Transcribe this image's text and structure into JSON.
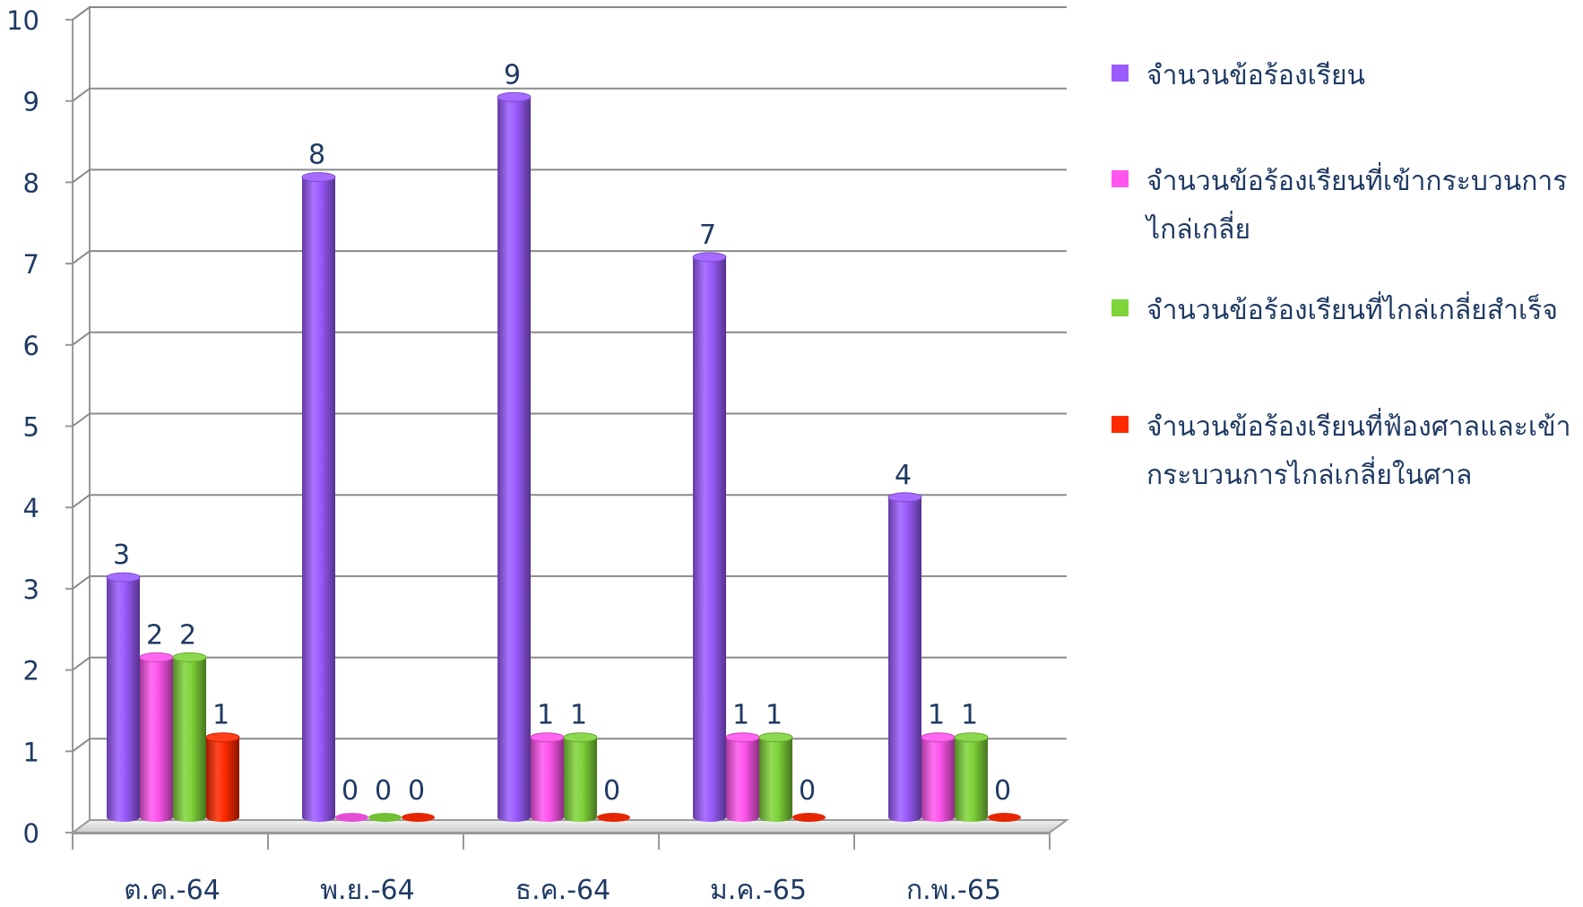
{
  "chart_data": {
    "type": "bar",
    "categories": [
      "ต.ค.-64",
      "พ.ย.-64",
      "ธ.ค.-64",
      "ม.ค.-65",
      "ก.พ.-65"
    ],
    "series": [
      {
        "name": "จำนวนข้อร้องเรียน",
        "values": [
          3,
          8,
          9,
          7,
          4
        ],
        "color": "#9b5cff"
      },
      {
        "name": "จำนวนข้อร้องเรียนที่เข้ากระบวนการไกล่เกลี่ย",
        "values": [
          2,
          0,
          1,
          1,
          1
        ],
        "color": "#ff55ee"
      },
      {
        "name": "จำนวนข้อร้องเรียนที่ไกล่เกลี่ยสำเร็จ",
        "values": [
          2,
          0,
          1,
          1,
          1
        ],
        "color": "#7fd43a"
      },
      {
        "name": "จำนวนข้อร้องเรียนที่ฟ้องศาลและเข้ากระบวนการไกล่เกลี่ยในศาล",
        "values": [
          1,
          0,
          0,
          0,
          0
        ],
        "color": "#ff2a00"
      }
    ],
    "yticks": [
      0,
      1,
      2,
      3,
      4,
      5,
      6,
      7,
      8,
      9,
      10
    ],
    "ylim": [
      0,
      10
    ],
    "grid": true,
    "legend": "right"
  }
}
